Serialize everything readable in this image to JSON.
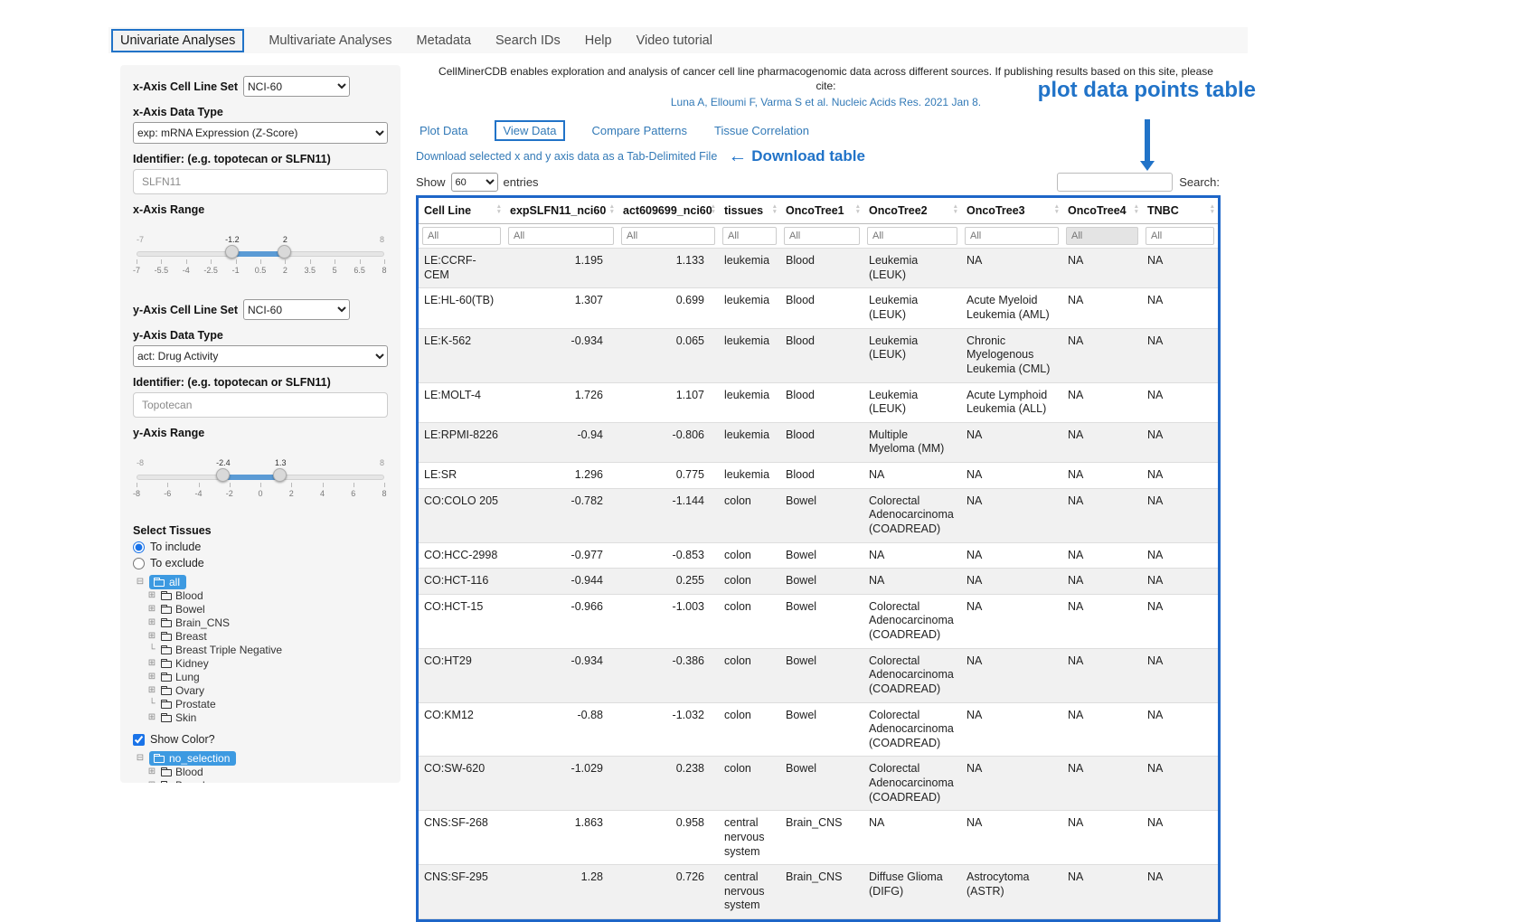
{
  "icons": {
    "collapse": "⊟",
    "expand": "⊞",
    "leaf": "└",
    "arrow_left": "←",
    "sort_up": "▲",
    "sort_down": "▼"
  },
  "colors": {
    "annotation_blue": "#2173c8",
    "link_blue": "#337ab7",
    "tree_selected_bg": "#3d9ae1",
    "table_border_blue": "#1e66c8",
    "slider_bar_blue": "#5b9bd5"
  },
  "nav": {
    "items": [
      {
        "label": "Univariate Analyses",
        "active": true
      },
      {
        "label": "Multivariate Analyses",
        "active": false
      },
      {
        "label": "Metadata",
        "active": false
      },
      {
        "label": "Search IDs",
        "active": false
      },
      {
        "label": "Help",
        "active": false
      },
      {
        "label": "Video tutorial",
        "active": false
      }
    ]
  },
  "sidebar": {
    "x_cell_line_set": {
      "label": "x-Axis Cell Line Set",
      "value": "NCI-60"
    },
    "x_data_type": {
      "label": "x-Axis Data Type",
      "value": "exp: mRNA Expression (Z-Score)"
    },
    "x_identifier": {
      "label": "Identifier: (e.g. topotecan or SLFN11)",
      "value": "SLFN11"
    },
    "x_range": {
      "label": "x-Axis Range",
      "min": -7,
      "max": 8,
      "from": -1.2,
      "to": 2,
      "ticks": [
        "-7",
        "-5.5",
        "-4",
        "-2.5",
        "-1",
        "0.5",
        "2",
        "3.5",
        "5",
        "6.5",
        "8"
      ]
    },
    "y_cell_line_set": {
      "label": "y-Axis Cell Line Set",
      "value": "NCI-60"
    },
    "y_data_type": {
      "label": "y-Axis Data Type",
      "value": "act: Drug Activity"
    },
    "y_identifier": {
      "label": "Identifier: (e.g. topotecan or SLFN11)",
      "value": "Topotecan"
    },
    "y_range": {
      "label": "y-Axis Range",
      "min": -8,
      "max": 8,
      "from": -2.4,
      "to": 1.3,
      "ticks": [
        "-8",
        "-6",
        "-4",
        "-2",
        "0",
        "2",
        "4",
        "6",
        "8"
      ]
    },
    "select_tissues_label": "Select Tissues",
    "radio_include": "To include",
    "radio_exclude": "To exclude",
    "include_selected": true,
    "show_color_label": "Show Color?",
    "show_color_checked": true,
    "tree_all_root": "all",
    "tree_selection_root": "no_selection",
    "tissue_children": [
      {
        "label": "Blood",
        "expandable": true
      },
      {
        "label": "Bowel",
        "expandable": true
      },
      {
        "label": "Brain_CNS",
        "expandable": true
      },
      {
        "label": "Breast",
        "expandable": true
      },
      {
        "label": "Breast Triple Negative",
        "expandable": false
      },
      {
        "label": "Kidney",
        "expandable": true
      },
      {
        "label": "Lung",
        "expandable": true
      },
      {
        "label": "Ovary",
        "expandable": true
      },
      {
        "label": "Prostate",
        "expandable": false
      },
      {
        "label": "Skin",
        "expandable": true
      }
    ]
  },
  "main": {
    "intro": "CellMinerCDB enables exploration and analysis of cancer cell line pharmacogenomic data across different sources. If publishing results based on this site, please cite:",
    "citation": "Luna A, Elloumi F, Varma S et al. Nucleic Acids Res. 2021 Jan 8.",
    "tabs": [
      {
        "label": "Plot Data",
        "active": false
      },
      {
        "label": "View Data",
        "active": true
      },
      {
        "label": "Compare Patterns",
        "active": false
      },
      {
        "label": "Tissue Correlation",
        "active": false
      }
    ],
    "download_link": "Download selected x and y axis data as a Tab-Delimited File",
    "annotations": {
      "download_table": "Download table",
      "plot_table": "plot data points table"
    },
    "show_entries": {
      "show": "Show",
      "value": "60",
      "suffix": "entries"
    },
    "search_label": "Search:"
  },
  "table": {
    "filter_placeholder": "All",
    "columns": [
      {
        "label": "Cell Line",
        "numeric": false
      },
      {
        "label": "expSLFN11_nci60",
        "numeric": true
      },
      {
        "label": "act609699_nci60",
        "numeric": true
      },
      {
        "label": "tissues",
        "numeric": false
      },
      {
        "label": "OncoTree1",
        "numeric": false
      },
      {
        "label": "OncoTree2",
        "numeric": false
      },
      {
        "label": "OncoTree3",
        "numeric": false
      },
      {
        "label": "OncoTree4",
        "numeric": false,
        "filter_disabled": true
      },
      {
        "label": "TNBC",
        "numeric": false
      }
    ],
    "rows": [
      [
        "LE:CCRF-CEM",
        "1.195",
        "1.133",
        "leukemia",
        "Blood",
        "Leukemia (LEUK)",
        "NA",
        "NA",
        "NA"
      ],
      [
        "LE:HL-60(TB)",
        "1.307",
        "0.699",
        "leukemia",
        "Blood",
        "Leukemia (LEUK)",
        "Acute Myeloid Leukemia (AML)",
        "NA",
        "NA"
      ],
      [
        "LE:K-562",
        "-0.934",
        "0.065",
        "leukemia",
        "Blood",
        "Leukemia (LEUK)",
        "Chronic Myelogenous Leukemia (CML)",
        "NA",
        "NA"
      ],
      [
        "LE:MOLT-4",
        "1.726",
        "1.107",
        "leukemia",
        "Blood",
        "Leukemia (LEUK)",
        "Acute Lymphoid Leukemia (ALL)",
        "NA",
        "NA"
      ],
      [
        "LE:RPMI-8226",
        "-0.94",
        "-0.806",
        "leukemia",
        "Blood",
        "Multiple Myeloma (MM)",
        "NA",
        "NA",
        "NA"
      ],
      [
        "LE:SR",
        "1.296",
        "0.775",
        "leukemia",
        "Blood",
        "NA",
        "NA",
        "NA",
        "NA"
      ],
      [
        "CO:COLO 205",
        "-0.782",
        "-1.144",
        "colon",
        "Bowel",
        "Colorectal Adenocarcinoma (COADREAD)",
        "NA",
        "NA",
        "NA"
      ],
      [
        "CO:HCC-2998",
        "-0.977",
        "-0.853",
        "colon",
        "Bowel",
        "NA",
        "NA",
        "NA",
        "NA"
      ],
      [
        "CO:HCT-116",
        "-0.944",
        "0.255",
        "colon",
        "Bowel",
        "NA",
        "NA",
        "NA",
        "NA"
      ],
      [
        "CO:HCT-15",
        "-0.966",
        "-1.003",
        "colon",
        "Bowel",
        "Colorectal Adenocarcinoma (COADREAD)",
        "NA",
        "NA",
        "NA"
      ],
      [
        "CO:HT29",
        "-0.934",
        "-0.386",
        "colon",
        "Bowel",
        "Colorectal Adenocarcinoma (COADREAD)",
        "NA",
        "NA",
        "NA"
      ],
      [
        "CO:KM12",
        "-0.88",
        "-1.032",
        "colon",
        "Bowel",
        "Colorectal Adenocarcinoma (COADREAD)",
        "NA",
        "NA",
        "NA"
      ],
      [
        "CO:SW-620",
        "-1.029",
        "0.238",
        "colon",
        "Bowel",
        "Colorectal Adenocarcinoma (COADREAD)",
        "NA",
        "NA",
        "NA"
      ],
      [
        "CNS:SF-268",
        "1.863",
        "0.958",
        "central nervous system",
        "Brain_CNS",
        "NA",
        "NA",
        "NA",
        "NA"
      ],
      [
        "CNS:SF-295",
        "1.28",
        "0.726",
        "central nervous system",
        "Brain_CNS",
        "Diffuse Glioma (DIFG)",
        "Astrocytoma (ASTR)",
        "NA",
        "NA"
      ]
    ]
  }
}
